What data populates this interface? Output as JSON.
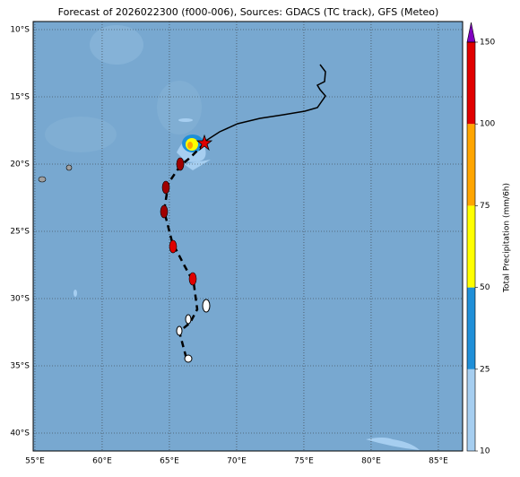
{
  "map": {
    "title": "Forecast of 2026022300 (f000-006), Sources: GDACS (TC track), GFS (Meteo)",
    "lon_ticks": [
      {
        "value": 55,
        "label": "55°E"
      },
      {
        "value": 60,
        "label": "60°E"
      },
      {
        "value": 65,
        "label": "65°E"
      },
      {
        "value": 70,
        "label": "70°E"
      },
      {
        "value": 75,
        "label": "75°E"
      },
      {
        "value": 80,
        "label": "80°E"
      },
      {
        "value": 85,
        "label": "85°E"
      }
    ],
    "lat_ticks": [
      {
        "value": -10,
        "label": "10°S"
      },
      {
        "value": -15,
        "label": "15°S"
      },
      {
        "value": -20,
        "label": "20°S"
      },
      {
        "value": -25,
        "label": "25°S"
      },
      {
        "value": -30,
        "label": "30°S"
      },
      {
        "value": -35,
        "label": "35°S"
      },
      {
        "value": -40,
        "label": "40°S"
      }
    ],
    "colorbar": {
      "label": "Total Precipitation (mm/6h)",
      "ticks": [
        10,
        25,
        50,
        75,
        100,
        150
      ],
      "colors": [
        "#a6cef0",
        "#1f8fd8",
        "#ffff00",
        "#ffa500",
        "#e00000"
      ],
      "extend_color": "#8000c0"
    }
  }
}
